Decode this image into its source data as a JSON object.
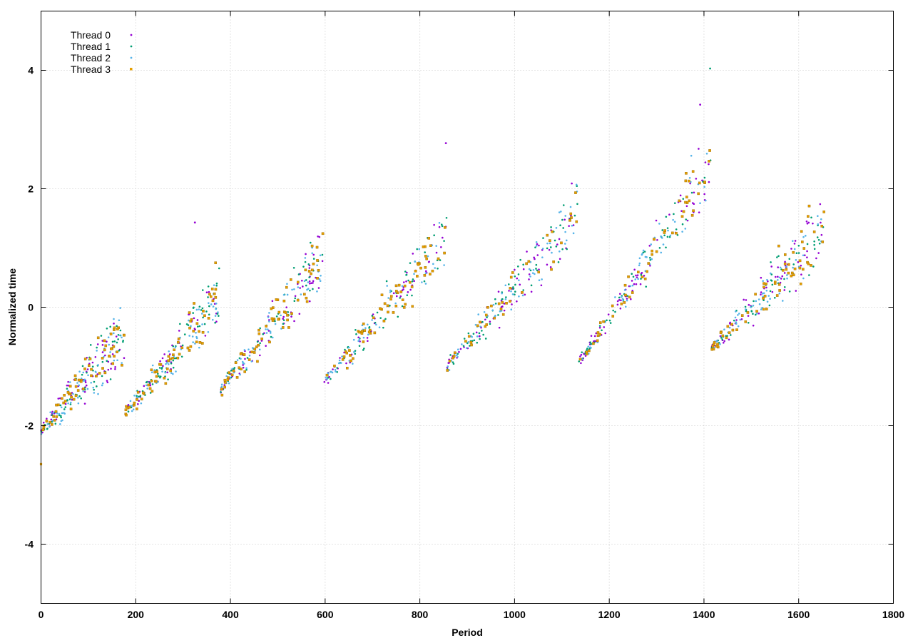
{
  "chart_data": {
    "type": "scatter",
    "title": "",
    "xlabel": "Period",
    "ylabel": "Normalized time",
    "xlim": [
      0,
      1800
    ],
    "ylim": [
      -5,
      5
    ],
    "x_ticks": [
      "0",
      "200",
      "400",
      "600",
      "800",
      "1000",
      "1200",
      "1400",
      "1600",
      "1800"
    ],
    "y_ticks": [
      "4",
      "2",
      "0",
      "-2",
      "-4"
    ],
    "grid": true,
    "legend_position": "top-left",
    "series": [
      {
        "name": "Thread 0",
        "color": "#9400d3",
        "marker": "dot"
      },
      {
        "name": "Thread 1",
        "color": "#009e73",
        "marker": "dot"
      },
      {
        "name": "Thread 2",
        "color": "#56b4e9",
        "marker": "dot"
      },
      {
        "name": "Thread 3",
        "color": "#e69f00",
        "marker": "square"
      }
    ],
    "segments": [
      {
        "x_start": 0,
        "x_end": 178,
        "y_start": -2.1,
        "y_end": -0.4
      },
      {
        "x_start": 178,
        "x_end": 378,
        "y_start": -1.8,
        "y_end": 0.2
      },
      {
        "x_start": 378,
        "x_end": 598,
        "y_start": -1.4,
        "y_end": 0.8
      },
      {
        "x_start": 598,
        "x_end": 857,
        "y_start": -1.25,
        "y_end": 1.2
      },
      {
        "x_start": 857,
        "x_end": 1135,
        "y_start": -1.0,
        "y_end": 1.6
      },
      {
        "x_start": 1135,
        "x_end": 1415,
        "y_start": -0.95,
        "y_end": 2.4
      },
      {
        "x_start": 1415,
        "x_end": 1655,
        "y_start": -0.7,
        "y_end": 1.3
      }
    ],
    "points_per_series": 420,
    "notable_points": [
      {
        "series": "Thread 1",
        "x": 1413,
        "y": 4.03
      },
      {
        "series": "Thread 0",
        "x": 1392,
        "y": 3.42
      },
      {
        "series": "Thread 3",
        "x": 0,
        "y": -2.65
      },
      {
        "series": "Thread 0",
        "x": 855,
        "y": 2.77
      },
      {
        "series": "Thread 0",
        "x": 325,
        "y": 1.43
      }
    ]
  }
}
